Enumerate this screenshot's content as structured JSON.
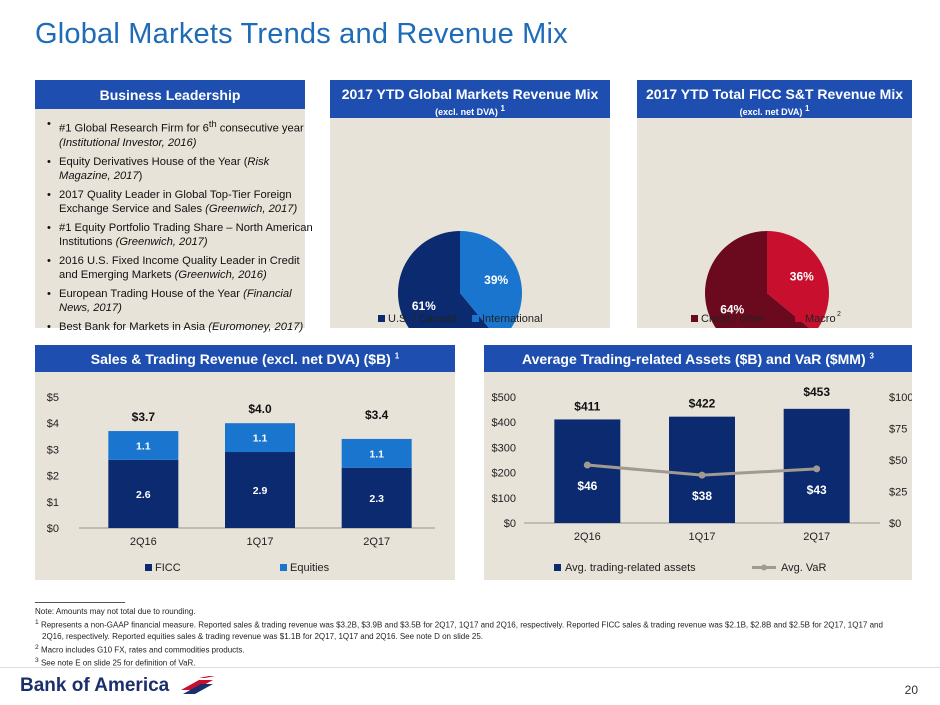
{
  "title": "Global Markets Trends and Revenue Mix",
  "leadership": {
    "header": "Business Leadership",
    "items": [
      {
        "pre": "#1 Global Research Firm for 6",
        "sup": "th",
        "mid": " consecutive year ",
        "it": "(Institutional Investor, 2016)",
        "post": ""
      },
      {
        "pre": "Equity Derivatives House of the Year (",
        "sup": "",
        "mid": "",
        "it": "Risk Magazine, 2017",
        "post": ")"
      },
      {
        "pre": "2017 Quality Leader in Global Top-Tier Foreign Exchange Service and Sales ",
        "sup": "",
        "mid": "",
        "it": "(Greenwich, 2017)",
        "post": ""
      },
      {
        "pre": "#1 Equity Portfolio Trading Share – North American Institutions ",
        "sup": "",
        "mid": "",
        "it": "(Greenwich, 2017)",
        "post": ""
      },
      {
        "pre": "2016 U.S. Fixed Income Quality Leader in Credit and Emerging Markets ",
        "sup": "",
        "mid": "",
        "it": "(Greenwich, 2016)",
        "post": ""
      },
      {
        "pre": "European Trading House of the Year ",
        "sup": "",
        "mid": "",
        "it": "(Financial News, 2017)",
        "post": ""
      },
      {
        "pre": "Best Bank for Markets in Asia ",
        "sup": "",
        "mid": "",
        "it": "(Euromoney, 2017)",
        "post": ""
      }
    ]
  },
  "colors": {
    "header_bg": "#1e4fb0",
    "panel_bg": "#e8e3d9",
    "navy": "#0b2a6f",
    "blue": "#1a75cf",
    "maroon": "#6b0a1f",
    "red": "#c8102e",
    "var_line": "#a09a91",
    "title": "#1e6bb8"
  },
  "gm_mix": {
    "header": "2017 YTD Global Markets Revenue Mix",
    "subheader": "(excl. net DVA)",
    "sup": "1"
  },
  "ficc_mix": {
    "header": "2017 YTD Total FICC S&T Revenue Mix",
    "subheader": "(excl. net DVA)",
    "sup": "1",
    "legend_sup": "2"
  },
  "st_revenue": {
    "header": "Sales & Trading Revenue (excl. net DVA) ($B)",
    "sup": "1"
  },
  "assets_var": {
    "header": "Average Trading-related Assets ($B) and VaR ($MM)",
    "sup": "3"
  },
  "chart_data": [
    {
      "type": "pie",
      "id": "gm_mix",
      "labels": [
        "U.S. / Canada",
        "International"
      ],
      "values": [
        61,
        39
      ],
      "data_labels": [
        "61%",
        "39%"
      ],
      "colors": [
        "#0b2a6f",
        "#1a75cf"
      ],
      "legend": "bottom"
    },
    {
      "type": "pie",
      "id": "ficc_mix",
      "labels": [
        "Credit / other",
        "Macro"
      ],
      "values": [
        64,
        36
      ],
      "data_labels": [
        "64%",
        "36%"
      ],
      "colors": [
        "#6b0a1f",
        "#c8102e"
      ],
      "legend": "bottom"
    },
    {
      "type": "bar",
      "stacked": true,
      "id": "st_revenue",
      "categories": [
        "2Q16",
        "1Q17",
        "2Q17"
      ],
      "series": [
        {
          "name": "FICC",
          "values": [
            2.6,
            2.9,
            2.3
          ],
          "labels": [
            "2.6",
            "2.9",
            "2.3"
          ],
          "color": "#0b2a6f"
        },
        {
          "name": "Equities",
          "values": [
            1.1,
            1.1,
            1.1
          ],
          "labels": [
            "1.1",
            "1.1",
            "1.1"
          ],
          "color": "#1a75cf"
        }
      ],
      "totals": [
        "$3.7",
        "$4.0",
        "$3.4"
      ],
      "ylim": [
        0,
        5
      ],
      "yticks": [
        "$0",
        "$1",
        "$2",
        "$3",
        "$4",
        "$5"
      ],
      "legend": "bottom"
    },
    {
      "type": "bar",
      "id": "assets_var",
      "categories": [
        "2Q16",
        "1Q17",
        "2Q17"
      ],
      "series": [
        {
          "name": "Avg. trading-related assets",
          "values": [
            411,
            422,
            453
          ],
          "labels": [
            "$411",
            "$422",
            "$453"
          ],
          "color": "#0b2a6f",
          "axis": "left"
        },
        {
          "name": "Avg. VaR",
          "type": "line",
          "values": [
            46,
            38,
            43
          ],
          "labels": [
            "$46",
            "$38",
            "$43"
          ],
          "color": "#a09a91",
          "axis": "right"
        }
      ],
      "ylim": [
        0,
        500
      ],
      "yticks": [
        "$0",
        "$100",
        "$200",
        "$300",
        "$400",
        "$500"
      ],
      "y2lim": [
        0,
        100
      ],
      "y2ticks": [
        "$0",
        "$25",
        "$50",
        "$75",
        "$100"
      ],
      "legend": "bottom"
    }
  ],
  "footnotes": [
    "Note: Amounts may not total due to rounding.",
    "Represents a non-GAAP financial measure. Reported sales & trading revenue was $3.2B, $3.9B and $3.5B for 2Q17, 1Q17 and 2Q16, respectively. Reported FICC sales & trading revenue was $2.1B, $2.8B and $2.5B for 2Q17, 1Q17 and",
    "2Q16, respectively. Reported equities sales & trading revenue was $1.1B for 2Q17, 1Q17 and 2Q16. See note D on slide 25.",
    "Macro includes G10 FX, rates and commodities products.",
    "See note E on slide 25 for definition of VaR."
  ],
  "footnote_marks": [
    "1",
    "2",
    "3"
  ],
  "logo": "Bank of America",
  "page_number": "20"
}
